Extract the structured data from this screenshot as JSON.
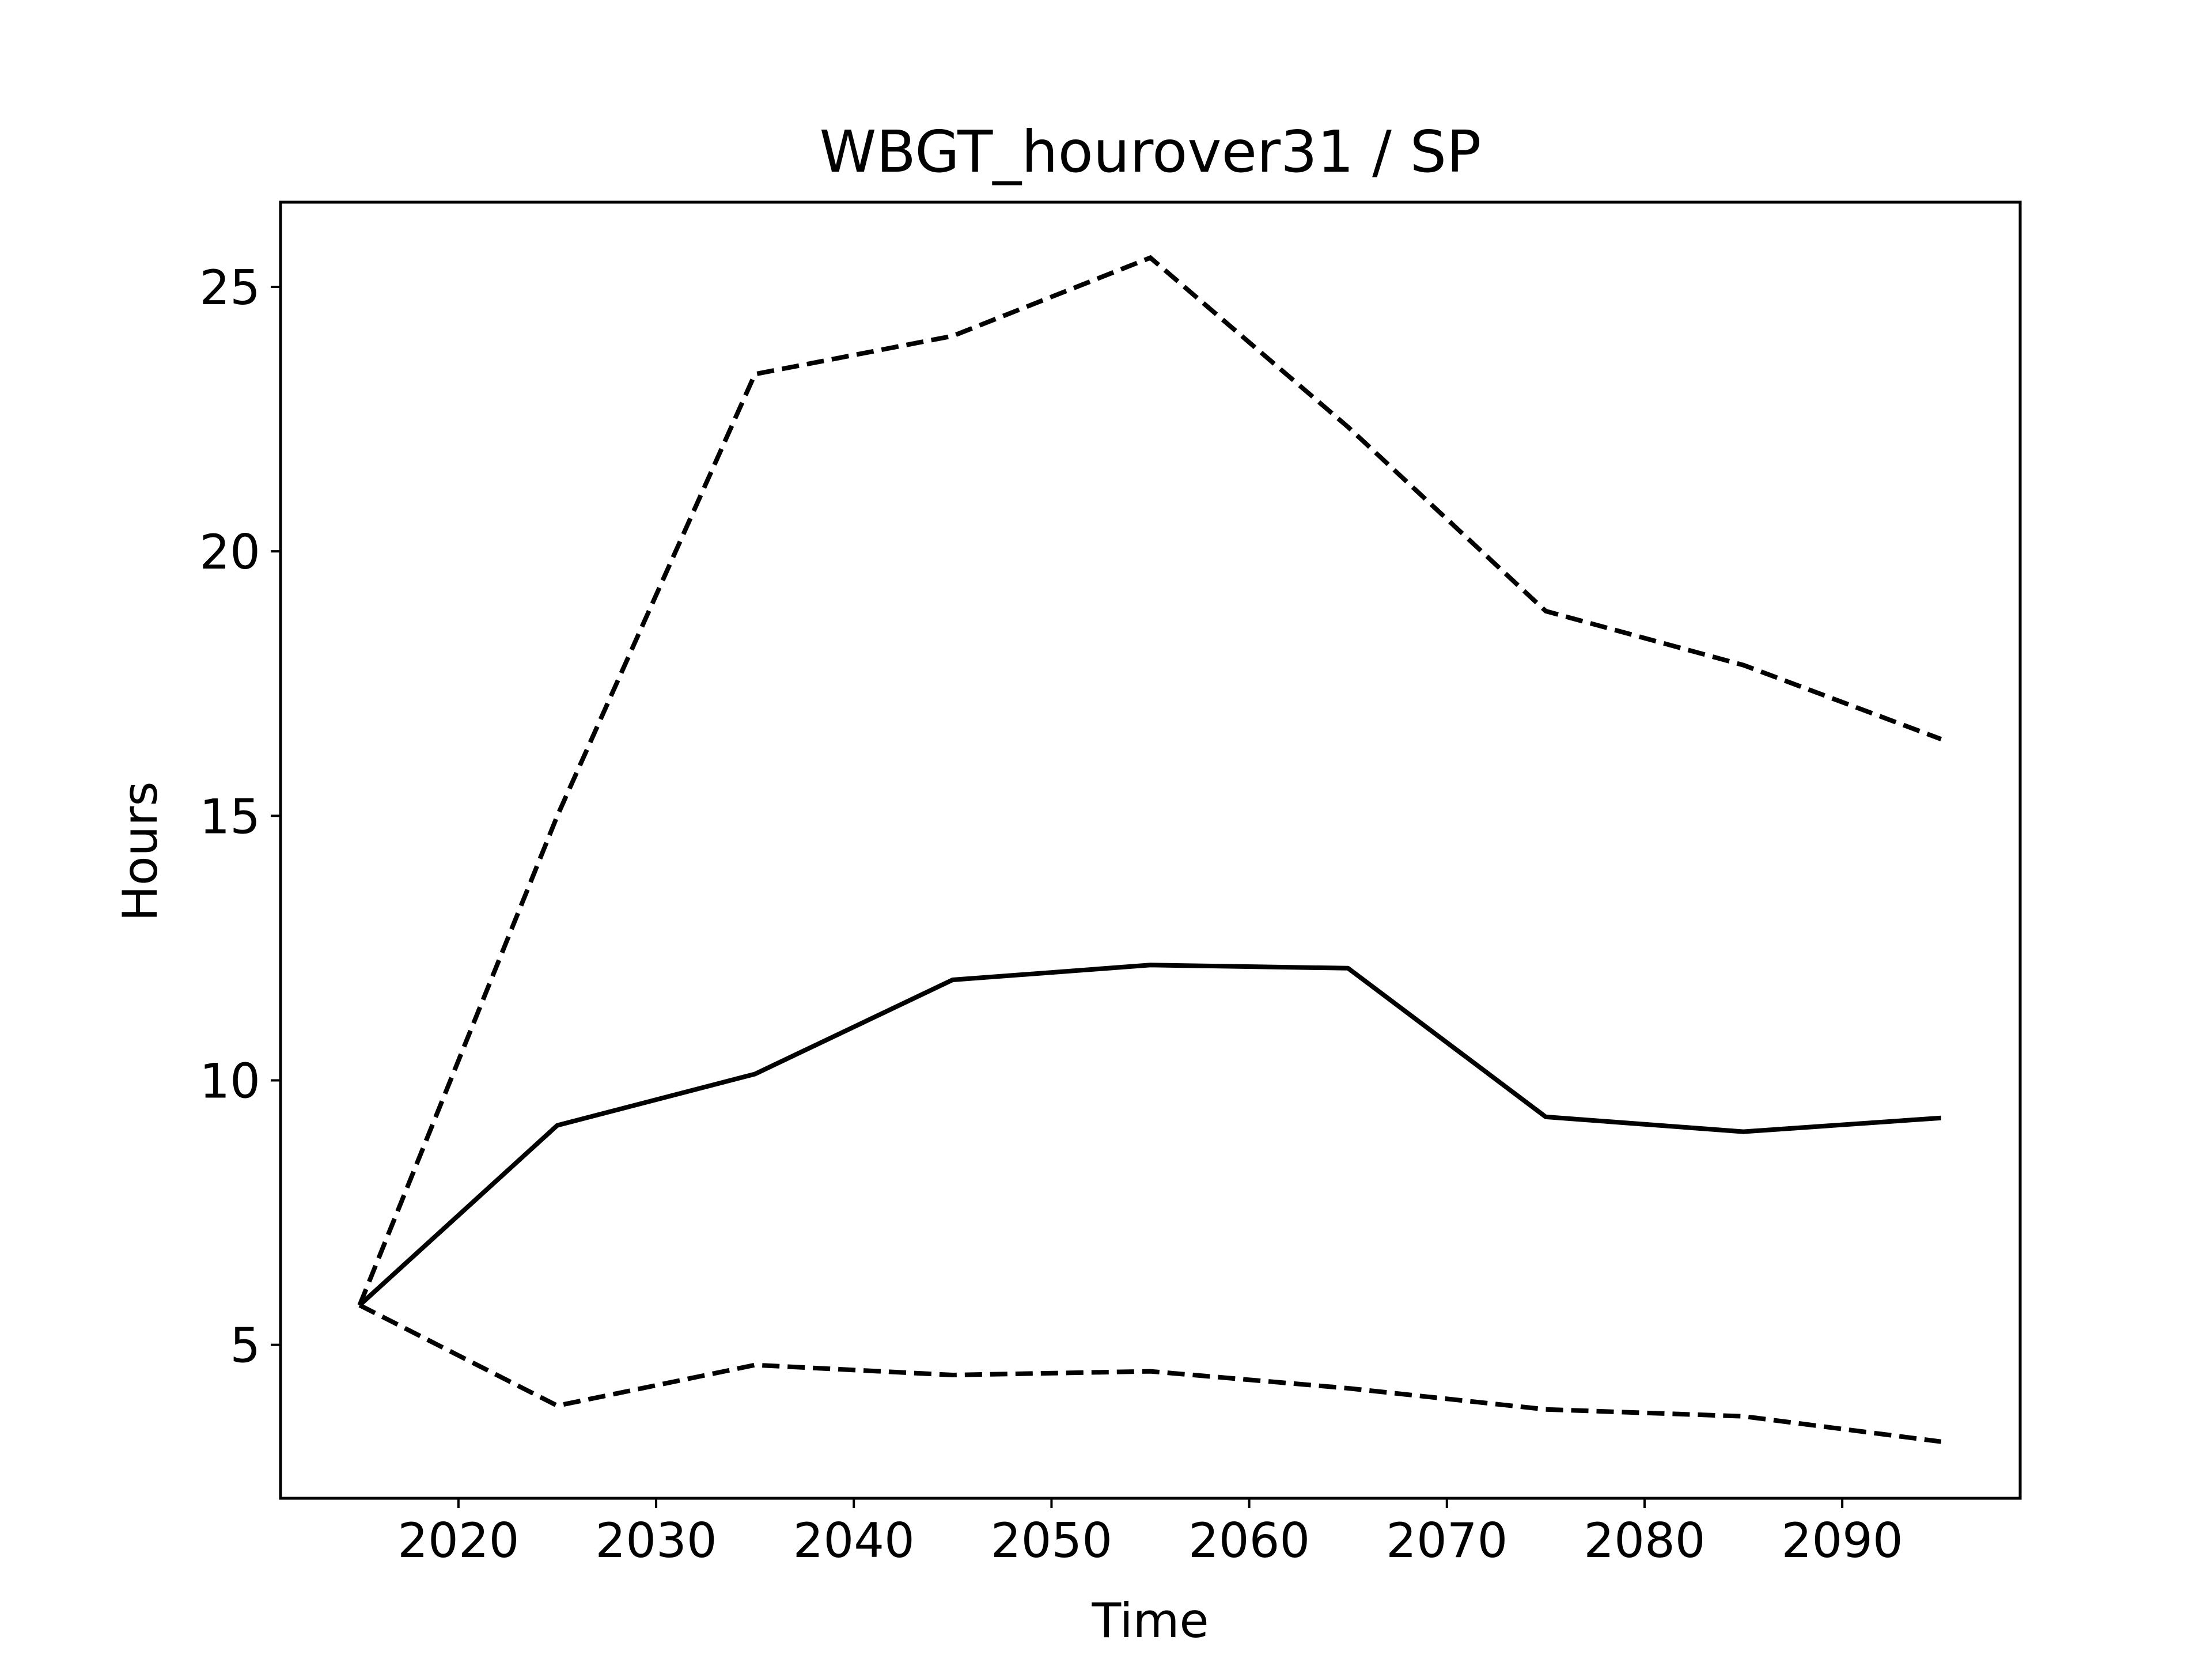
{
  "chart_data": {
    "type": "line",
    "title": "WBGT_hourover31 / SP",
    "xlabel": "Time",
    "ylabel": "Hours",
    "xlim": [
      2011,
      2099
    ],
    "ylim": [
      2.1,
      26.6
    ],
    "x_ticks": [
      2020,
      2030,
      2040,
      2050,
      2060,
      2070,
      2080,
      2090
    ],
    "y_ticks": [
      5,
      10,
      15,
      20,
      25
    ],
    "grid": false,
    "legend": false,
    "x": [
      2015,
      2025,
      2035,
      2045,
      2055,
      2065,
      2075,
      2085,
      2095
    ],
    "series": [
      {
        "style": "solid",
        "color": "#000000",
        "values": [
          5.75,
          9.15,
          10.12,
          11.9,
          12.18,
          12.12,
          9.31,
          9.03,
          9.29
        ]
      },
      {
        "style": "dashed",
        "color": "#000000",
        "values": [
          5.75,
          15.0,
          23.35,
          24.07,
          25.55,
          22.35,
          18.87,
          17.85,
          16.45
        ]
      },
      {
        "style": "dashed",
        "color": "#000000",
        "values": [
          5.75,
          3.85,
          4.62,
          4.43,
          4.5,
          4.18,
          3.78,
          3.65,
          3.17
        ]
      }
    ]
  }
}
